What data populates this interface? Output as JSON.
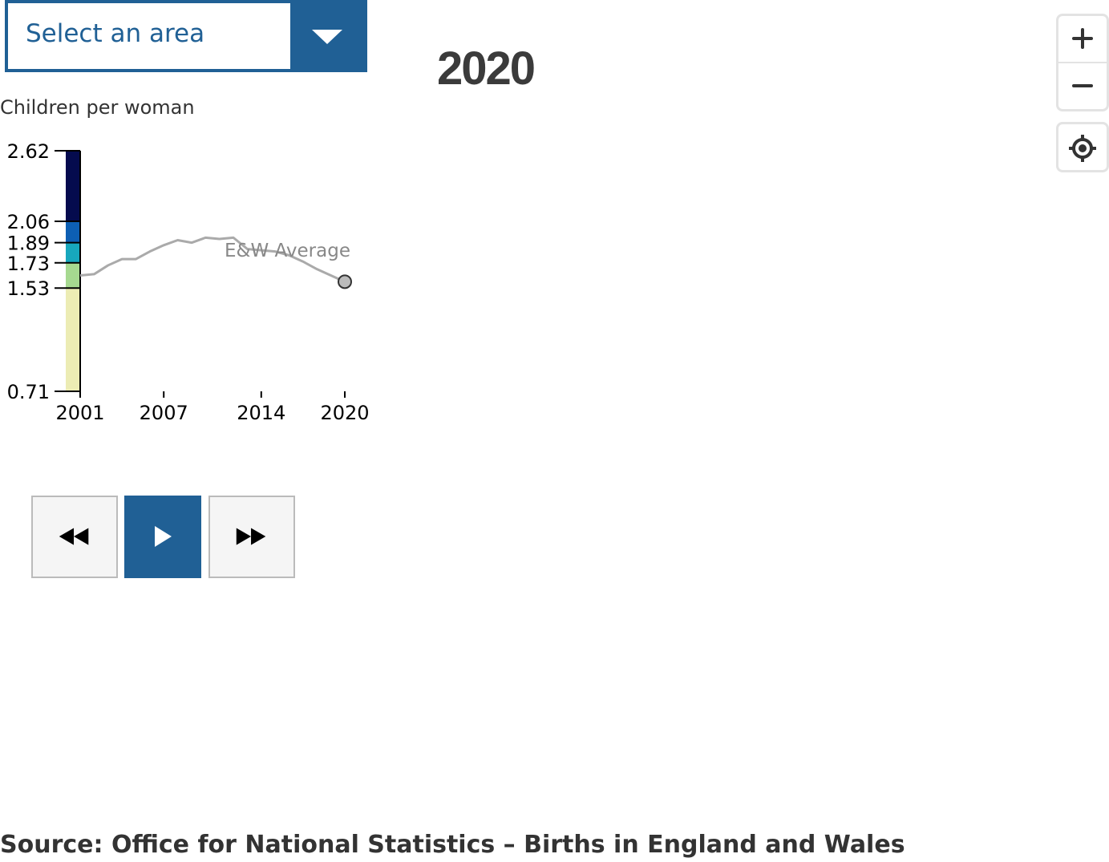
{
  "area_select": {
    "label": "Select an area",
    "icon": "chevron-down-icon"
  },
  "year_label": "2020",
  "legend_title": "Children per woman",
  "map_controls": {
    "zoom_in_icon": "plus-icon",
    "zoom_out_icon": "minus-icon",
    "locate_icon": "crosshair-icon"
  },
  "playback": {
    "rewind_icon": "rewind-icon",
    "play_icon": "play-icon",
    "fast_forward_icon": "fast-forward-icon"
  },
  "source_text": "Source: Office for National Statistics – Births in England and Wales",
  "colors": {
    "accent": "#206095",
    "average_line": "#aaaaaa",
    "average_marker": "#bbbbbb"
  },
  "chart_data": {
    "type": "line",
    "title": "",
    "ylabel": "Children per woman",
    "xlabel": "",
    "ylim": [
      0.71,
      2.62
    ],
    "xlim": [
      2001,
      2020
    ],
    "x_ticks": [
      "2001",
      "2007",
      "2014",
      "2020"
    ],
    "y_ticks": [
      "2.62",
      "2.06",
      "1.89",
      "1.73",
      "1.53",
      "0.71"
    ],
    "legend_scale": {
      "breaks": [
        0.71,
        1.53,
        1.73,
        1.89,
        2.06,
        2.62
      ],
      "colors": [
        "#ececb4",
        "#a6d990",
        "#17a7bd",
        "#0d5fb3",
        "#050b4e"
      ]
    },
    "series": [
      {
        "name": "E&W Average",
        "x": [
          2001,
          2002,
          2003,
          2004,
          2005,
          2006,
          2007,
          2008,
          2009,
          2010,
          2011,
          2012,
          2013,
          2014,
          2015,
          2016,
          2017,
          2018,
          2019,
          2020
        ],
        "values": [
          1.63,
          1.64,
          1.71,
          1.76,
          1.76,
          1.82,
          1.87,
          1.91,
          1.89,
          1.93,
          1.92,
          1.93,
          1.84,
          1.83,
          1.82,
          1.79,
          1.74,
          1.68,
          1.63,
          1.58
        ],
        "highlight_last": true
      }
    ]
  }
}
